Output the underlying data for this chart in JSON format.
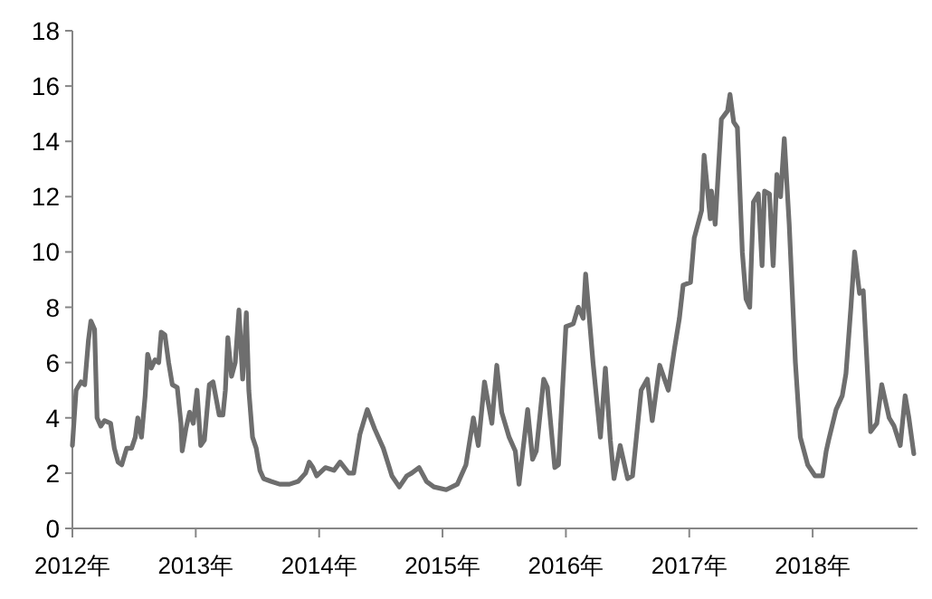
{
  "chart_data": {
    "type": "line",
    "xlim": [
      2012,
      2018.85
    ],
    "xticks": [
      {
        "value": 2012,
        "label": "2012年"
      },
      {
        "value": 2013,
        "label": "2013年"
      },
      {
        "value": 2014,
        "label": "2014年"
      },
      {
        "value": 2015,
        "label": "2015年"
      },
      {
        "value": 2016,
        "label": "2016年"
      },
      {
        "value": 2017,
        "label": "2017年"
      },
      {
        "value": 2018,
        "label": "2018年"
      }
    ],
    "ylim": [
      0,
      18
    ],
    "yticks": [
      0,
      2,
      4,
      6,
      8,
      10,
      12,
      14,
      16,
      18
    ],
    "grid": false,
    "marker": "none",
    "line_style": "solid",
    "series": [
      {
        "color": "#6e6e6e",
        "x": [
          2012.0,
          2012.03,
          2012.07,
          2012.1,
          2012.13,
          2012.15,
          2012.18,
          2012.2,
          2012.23,
          2012.26,
          2012.31,
          2012.34,
          2012.37,
          2012.4,
          2012.44,
          2012.48,
          2012.51,
          2012.53,
          2012.56,
          2012.59,
          2012.61,
          2012.64,
          2012.67,
          2012.7,
          2012.72,
          2012.75,
          2012.78,
          2012.81,
          2012.85,
          2012.88,
          2012.89,
          2012.92,
          2012.95,
          2012.98,
          2013.01,
          2013.04,
          2013.07,
          2013.11,
          2013.14,
          2013.19,
          2013.22,
          2013.24,
          2013.26,
          2013.29,
          2013.32,
          2013.35,
          2013.38,
          2013.41,
          2013.43,
          2013.46,
          2013.49,
          2013.52,
          2013.55,
          2013.61,
          2013.68,
          2013.76,
          2013.83,
          2013.89,
          2013.92,
          2013.95,
          2013.98,
          2014.05,
          2014.12,
          2014.17,
          2014.24,
          2014.28,
          2014.33,
          2014.39,
          2014.45,
          2014.52,
          2014.59,
          2014.65,
          2014.71,
          2014.75,
          2014.81,
          2014.87,
          2014.93,
          2015.03,
          2015.12,
          2015.19,
          2015.25,
          2015.29,
          2015.34,
          2015.4,
          2015.44,
          2015.48,
          2015.54,
          2015.59,
          2015.62,
          2015.69,
          2015.73,
          2015.76,
          2015.82,
          2015.85,
          2015.91,
          2015.94,
          2016.0,
          2016.06,
          2016.1,
          2016.14,
          2016.16,
          2016.22,
          2016.28,
          2016.32,
          2016.36,
          2016.39,
          2016.44,
          2016.5,
          2016.54,
          2016.61,
          2016.66,
          2016.7,
          2016.76,
          2016.83,
          2016.88,
          2016.92,
          2016.95,
          2017.01,
          2017.04,
          2017.1,
          2017.12,
          2017.17,
          2017.18,
          2017.21,
          2017.26,
          2017.31,
          2017.33,
          2017.36,
          2017.39,
          2017.43,
          2017.46,
          2017.49,
          2017.52,
          2017.56,
          2017.59,
          2017.61,
          2017.65,
          2017.68,
          2017.71,
          2017.74,
          2017.77,
          2017.81,
          2017.86,
          2017.9,
          2017.96,
          2018.02,
          2018.08,
          2018.11,
          2018.13,
          2018.19,
          2018.24,
          2018.27,
          2018.31,
          2018.34,
          2018.38,
          2018.41,
          2018.47,
          2018.52,
          2018.56,
          2018.62,
          2018.66,
          2018.71,
          2018.75,
          2018.78,
          2018.82
        ],
        "values": [
          3.0,
          5.0,
          5.3,
          5.2,
          6.8,
          7.5,
          7.2,
          4.0,
          3.7,
          3.9,
          3.8,
          2.9,
          2.4,
          2.3,
          2.9,
          2.9,
          3.3,
          4.0,
          3.3,
          4.8,
          6.3,
          5.8,
          6.1,
          6.0,
          7.1,
          7.0,
          6.0,
          5.2,
          5.1,
          3.8,
          2.8,
          3.6,
          4.2,
          3.8,
          5.0,
          3.0,
          3.2,
          5.2,
          5.3,
          4.1,
          4.1,
          5.0,
          6.9,
          5.5,
          6.0,
          7.9,
          5.4,
          7.8,
          5.0,
          3.3,
          2.9,
          2.1,
          1.8,
          1.7,
          1.6,
          1.6,
          1.7,
          2.0,
          2.4,
          2.2,
          1.9,
          2.2,
          2.1,
          2.4,
          2.0,
          2.0,
          3.4,
          4.3,
          3.6,
          2.9,
          1.9,
          1.5,
          1.9,
          2.0,
          2.2,
          1.7,
          1.5,
          1.4,
          1.6,
          2.3,
          4.0,
          3.0,
          5.3,
          3.8,
          5.9,
          4.2,
          3.3,
          2.8,
          1.6,
          4.3,
          2.5,
          2.8,
          5.4,
          5.1,
          2.2,
          2.3,
          7.3,
          7.4,
          8.0,
          7.6,
          9.2,
          6.0,
          3.3,
          5.8,
          3.2,
          1.8,
          3.0,
          1.8,
          1.9,
          5.0,
          5.4,
          3.9,
          5.9,
          5.0,
          6.5,
          7.6,
          8.8,
          8.9,
          10.5,
          11.5,
          13.5,
          11.2,
          12.2,
          11.0,
          14.8,
          15.1,
          15.7,
          14.7,
          14.5,
          10.0,
          8.3,
          8.0,
          11.8,
          12.1,
          9.5,
          12.2,
          12.1,
          9.5,
          12.8,
          12.0,
          14.1,
          11.0,
          6.0,
          3.3,
          2.3,
          1.9,
          1.9,
          2.8,
          3.2,
          4.3,
          4.8,
          5.6,
          8.0,
          10.0,
          8.5,
          8.6,
          3.5,
          3.8,
          5.2,
          4.0,
          3.7,
          3.0,
          4.8,
          4.0,
          2.7
        ]
      }
    ]
  }
}
